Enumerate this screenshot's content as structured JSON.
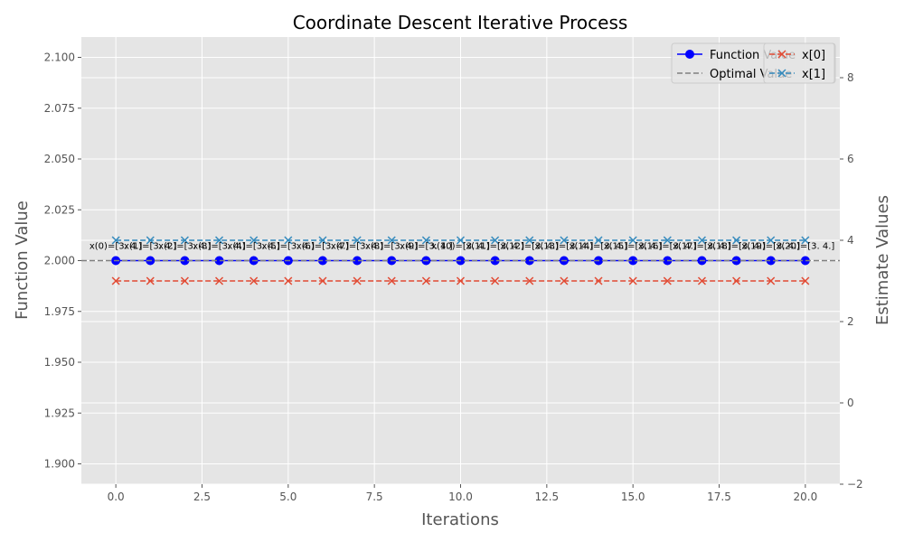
{
  "chart_data": {
    "type": "line",
    "title": "Coordinate Descent Iterative Process",
    "xlabel": "Iterations",
    "ylabel": "Function Value",
    "ylabel_right": "Estimate Values",
    "xlim": [
      -1,
      21
    ],
    "ylim": [
      1.89,
      2.11
    ],
    "ylim_right": [
      -2,
      9
    ],
    "x_ticks": [
      "0.0",
      "2.5",
      "5.0",
      "7.5",
      "10.0",
      "12.5",
      "15.0",
      "17.5",
      "20.0"
    ],
    "x_tick_values": [
      0,
      2.5,
      5,
      7.5,
      10,
      12.5,
      15,
      17.5,
      20
    ],
    "y_ticks": [
      "1.900",
      "1.925",
      "1.950",
      "1.975",
      "2.000",
      "2.025",
      "2.050",
      "2.075",
      "2.100"
    ],
    "y_tick_values": [
      1.9,
      1.925,
      1.95,
      1.975,
      2.0,
      2.025,
      2.05,
      2.075,
      2.1
    ],
    "y_right_ticks": [
      "−2",
      "0",
      "2",
      "4",
      "6",
      "8"
    ],
    "y_right_tick_values": [
      -2,
      0,
      2,
      4,
      6,
      8
    ],
    "grid": true,
    "x": [
      0,
      1,
      2,
      3,
      4,
      5,
      6,
      7,
      8,
      9,
      10,
      11,
      12,
      13,
      14,
      15,
      16,
      17,
      18,
      19,
      20
    ],
    "series": [
      {
        "name": "Function Value",
        "axis": "left",
        "values": [
          2.0,
          2.0,
          2.0,
          2.0,
          2.0,
          2.0,
          2.0,
          2.0,
          2.0,
          2.0,
          2.0,
          2.0,
          2.0,
          2.0,
          2.0,
          2.0,
          2.0,
          2.0,
          2.0,
          2.0,
          2.0
        ],
        "color": "#0000ff",
        "style": "solid",
        "marker": "circle"
      },
      {
        "name": "Optimal Value",
        "axis": "left",
        "constant": 2.0,
        "color": "#808080",
        "style": "dashed"
      },
      {
        "name": "x[0]",
        "axis": "right",
        "values": [
          3,
          3,
          3,
          3,
          3,
          3,
          3,
          3,
          3,
          3,
          3,
          3,
          3,
          3,
          3,
          3,
          3,
          3,
          3,
          3,
          3
        ],
        "color": "#e24a33",
        "style": "dashed",
        "marker": "x"
      },
      {
        "name": "x[1]",
        "axis": "right",
        "values": [
          4,
          4,
          4,
          4,
          4,
          4,
          4,
          4,
          4,
          4,
          4,
          4,
          4,
          4,
          4,
          4,
          4,
          4,
          4,
          4,
          4
        ],
        "color": "#348abd",
        "style": "dashed",
        "marker": "x"
      }
    ],
    "annotations": [
      "x(0)=[3. 4.]",
      "x(1)=[3. 4.]",
      "x(2)=[3. 4.]",
      "x(3)=[3. 4.]",
      "x(4)=[3. 4.]",
      "x(5)=[3. 4.]",
      "x(6)=[3. 4.]",
      "x(7)=[3. 4.]",
      "x(8)=[3. 4.]",
      "x(9)=[3. 4.]",
      "x(10)=[3. 4.]",
      "x(11)=[3. 4.]",
      "x(12)=[3. 4.]",
      "x(13)=[3. 4.]",
      "x(14)=[3. 4.]",
      "x(15)=[3. 4.]",
      "x(16)=[3. 4.]",
      "x(17)=[3. 4.]",
      "x(18)=[3. 4.]",
      "x(19)=[3. 4.]",
      "x(20)=[3. 4.]"
    ],
    "legend_left": [
      "Function Value",
      "Optimal Value"
    ],
    "legend_right": [
      "x[0]",
      "x[1]"
    ],
    "legend_placement": "upper right",
    "colors": {
      "plot_background": "#e5e5e5",
      "grid": "#ffffff",
      "tick_text": "#555555"
    }
  }
}
